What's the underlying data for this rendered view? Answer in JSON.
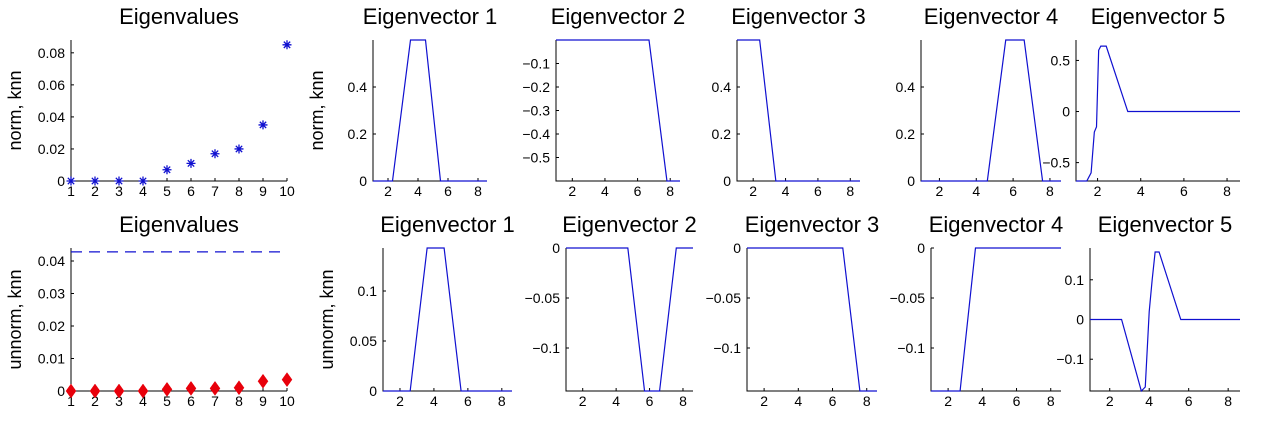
{
  "chart_data": [
    {
      "id": "p1",
      "type": "scatter",
      "title": "Eigenvalues",
      "ylabel": "norm, knn",
      "xlim": [
        1,
        10
      ],
      "ylim": [
        0,
        0.088
      ],
      "xticks": [
        1,
        2,
        3,
        4,
        5,
        6,
        7,
        8,
        9,
        10
      ],
      "xtick_labels": [
        "1",
        "2",
        "3",
        "4",
        "5",
        "6",
        "7",
        "8",
        "9",
        "10"
      ],
      "yticks": [
        0,
        0.02,
        0.04,
        0.06,
        0.08
      ],
      "ytick_labels": [
        "0",
        "0.02",
        "0.04",
        "0.06",
        "0.08"
      ],
      "marker": "asterisk",
      "color": "#1010d0",
      "points": [
        [
          1,
          0
        ],
        [
          2,
          0
        ],
        [
          3,
          0
        ],
        [
          4,
          0
        ],
        [
          5,
          0.007
        ],
        [
          6,
          0.011
        ],
        [
          7,
          0.017
        ],
        [
          8,
          0.02
        ],
        [
          9,
          0.035
        ],
        [
          10,
          0.085
        ]
      ]
    },
    {
      "id": "p2",
      "type": "line",
      "title": "Eigenvector 1",
      "ylabel": "norm, knn",
      "xlim": [
        1,
        8.6
      ],
      "ylim": [
        0,
        0.6
      ],
      "xticks": [
        2,
        4,
        6,
        8
      ],
      "xtick_labels": [
        "2",
        "4",
        "6",
        "8"
      ],
      "yticks": [
        0,
        0.2,
        0.4
      ],
      "ytick_labels": [
        "0",
        "0.2",
        "0.4"
      ],
      "points": [
        [
          1,
          0
        ],
        [
          2.3,
          0
        ],
        [
          3.5,
          0.6
        ],
        [
          4.5,
          0.6
        ],
        [
          5.5,
          0
        ],
        [
          8.6,
          0
        ]
      ]
    },
    {
      "id": "p3",
      "type": "line",
      "title": "Eigenvector 2",
      "ylabel": "",
      "xlim": [
        1,
        8.6
      ],
      "ylim": [
        -0.6,
        0
      ],
      "xticks": [
        2,
        4,
        6,
        8
      ],
      "xtick_labels": [
        "2",
        "4",
        "6",
        "8"
      ],
      "yticks": [
        -0.5,
        -0.4,
        -0.3,
        -0.2,
        -0.1
      ],
      "ytick_labels": [
        "−0.5",
        "−0.4",
        "−0.3",
        "−0.2",
        "−0.1"
      ],
      "points": [
        [
          1,
          0
        ],
        [
          6.7,
          0
        ],
        [
          7.8,
          -0.6
        ],
        [
          8.6,
          -0.6
        ]
      ]
    },
    {
      "id": "p4",
      "type": "line",
      "title": "Eigenvector 3",
      "ylabel": "",
      "xlim": [
        1,
        8.6
      ],
      "ylim": [
        0,
        0.6
      ],
      "xticks": [
        2,
        4,
        6,
        8
      ],
      "xtick_labels": [
        "2",
        "4",
        "6",
        "8"
      ],
      "yticks": [
        0,
        0.2,
        0.4
      ],
      "ytick_labels": [
        "0",
        "0.2",
        "0.4"
      ],
      "points": [
        [
          1,
          0.6
        ],
        [
          2.4,
          0.6
        ],
        [
          3.4,
          0
        ],
        [
          8.6,
          0
        ]
      ]
    },
    {
      "id": "p5",
      "type": "line",
      "title": "Eigenvector 4",
      "ylabel": "",
      "xlim": [
        1,
        8.6
      ],
      "ylim": [
        0,
        0.6
      ],
      "xticks": [
        2,
        4,
        6,
        8
      ],
      "xtick_labels": [
        "2",
        "4",
        "6",
        "8"
      ],
      "yticks": [
        0,
        0.2,
        0.4
      ],
      "ytick_labels": [
        "0",
        "0.2",
        "0.4"
      ],
      "points": [
        [
          1,
          0
        ],
        [
          4.6,
          0
        ],
        [
          5.6,
          0.6
        ],
        [
          6.6,
          0.6
        ],
        [
          7.6,
          0
        ],
        [
          8.6,
          0
        ]
      ]
    },
    {
      "id": "p6",
      "type": "line",
      "title": "Eigenvector 5",
      "ylabel": "",
      "xlim": [
        1,
        8.6
      ],
      "ylim": [
        -0.68,
        0.7
      ],
      "xticks": [
        2,
        4,
        6,
        8
      ],
      "xtick_labels": [
        "2",
        "4",
        "6",
        "8"
      ],
      "yticks": [
        -0.5,
        0,
        0.5
      ],
      "ytick_labels": [
        "−0.5",
        "0",
        "0.5"
      ],
      "points": [
        [
          1,
          -0.68
        ],
        [
          1.5,
          -0.68
        ],
        [
          1.7,
          -0.6
        ],
        [
          1.85,
          -0.2
        ],
        [
          1.95,
          -0.15
        ],
        [
          2.05,
          0.6
        ],
        [
          2.15,
          0.64
        ],
        [
          2.4,
          0.64
        ],
        [
          3.4,
          0
        ],
        [
          8.6,
          0
        ]
      ]
    },
    {
      "id": "p7",
      "type": "scatter",
      "title": "Eigenvalues",
      "ylabel": "unnorm, knn",
      "xlim": [
        1,
        10
      ],
      "ylim": [
        0,
        0.044
      ],
      "xticks": [
        1,
        2,
        3,
        4,
        5,
        6,
        7,
        8,
        9,
        10
      ],
      "xtick_labels": [
        "1",
        "2",
        "3",
        "4",
        "5",
        "6",
        "7",
        "8",
        "9",
        "10"
      ],
      "yticks": [
        0,
        0.01,
        0.02,
        0.03,
        0.04
      ],
      "ytick_labels": [
        "0",
        "0.01",
        "0.02",
        "0.03",
        "0.04"
      ],
      "marker": "diamond",
      "color": "#e8000b",
      "reference_line": {
        "y": 0.0428,
        "style": "dashed",
        "color": "#1010d0"
      },
      "points": [
        [
          1,
          0
        ],
        [
          2,
          0
        ],
        [
          3,
          0
        ],
        [
          4,
          0
        ],
        [
          5,
          0.0005
        ],
        [
          6,
          0.0008
        ],
        [
          7,
          0.0008
        ],
        [
          8,
          0.001
        ],
        [
          9,
          0.003
        ],
        [
          10,
          0.0035
        ]
      ]
    },
    {
      "id": "p8",
      "type": "line",
      "title": "Eigenvector 1",
      "ylabel": "unnorm, knn",
      "xlim": [
        1,
        8.6
      ],
      "ylim": [
        0,
        0.143
      ],
      "xticks": [
        2,
        4,
        6,
        8
      ],
      "xtick_labels": [
        "2",
        "4",
        "6",
        "8"
      ],
      "yticks": [
        0,
        0.05,
        0.1
      ],
      "ytick_labels": [
        "0",
        "0.05",
        "0.1"
      ],
      "points": [
        [
          1,
          0
        ],
        [
          2.6,
          0
        ],
        [
          3.6,
          0.143
        ],
        [
          4.6,
          0.143
        ],
        [
          5.6,
          0
        ],
        [
          8.6,
          0
        ]
      ]
    },
    {
      "id": "p9",
      "type": "line",
      "title": "Eigenvector 2",
      "ylabel": "",
      "xlim": [
        1,
        8.6
      ],
      "ylim": [
        -0.143,
        0
      ],
      "xticks": [
        2,
        4,
        6,
        8
      ],
      "xtick_labels": [
        "2",
        "4",
        "6",
        "8"
      ],
      "yticks": [
        -0.1,
        -0.05,
        0
      ],
      "ytick_labels": [
        "−0.1",
        "−0.05",
        "0"
      ],
      "points": [
        [
          1,
          0
        ],
        [
          4.7,
          0
        ],
        [
          5.7,
          -0.143
        ],
        [
          6.6,
          -0.143
        ],
        [
          7.6,
          0
        ],
        [
          8.6,
          0
        ]
      ]
    },
    {
      "id": "p10",
      "type": "line",
      "title": "Eigenvector 3",
      "ylabel": "",
      "xlim": [
        1,
        8.6
      ],
      "ylim": [
        -0.143,
        0
      ],
      "xticks": [
        2,
        4,
        6,
        8
      ],
      "xtick_labels": [
        "2",
        "4",
        "6",
        "8"
      ],
      "yticks": [
        -0.1,
        -0.05,
        0
      ],
      "ytick_labels": [
        "−0.1",
        "−0.05",
        "0"
      ],
      "points": [
        [
          1,
          0
        ],
        [
          6.6,
          0
        ],
        [
          7.6,
          -0.143
        ],
        [
          8.6,
          -0.143
        ]
      ]
    },
    {
      "id": "p11",
      "type": "line",
      "title": "Eigenvector 4",
      "ylabel": "",
      "xlim": [
        1,
        8.6
      ],
      "ylim": [
        -0.143,
        0
      ],
      "xticks": [
        2,
        4,
        6,
        8
      ],
      "xtick_labels": [
        "2",
        "4",
        "6",
        "8"
      ],
      "yticks": [
        -0.1,
        -0.05,
        0
      ],
      "ytick_labels": [
        "−0.1",
        "−0.05",
        "0"
      ],
      "points": [
        [
          1,
          -0.143
        ],
        [
          2.7,
          -0.143
        ],
        [
          3.6,
          0
        ],
        [
          8.6,
          0
        ]
      ]
    },
    {
      "id": "p12",
      "type": "line",
      "title": "Eigenvector 5",
      "ylabel": "",
      "xlim": [
        1,
        8.6
      ],
      "ylim": [
        -0.18,
        0.18
      ],
      "xticks": [
        2,
        4,
        6,
        8
      ],
      "xtick_labels": [
        "2",
        "4",
        "6",
        "8"
      ],
      "yticks": [
        -0.1,
        0,
        0.1
      ],
      "ytick_labels": [
        "−0.1",
        "0",
        "0.1"
      ],
      "points": [
        [
          1,
          0
        ],
        [
          2.6,
          0
        ],
        [
          3.6,
          -0.18
        ],
        [
          3.8,
          -0.17
        ],
        [
          4.0,
          0.02
        ],
        [
          4.15,
          0.1
        ],
        [
          4.3,
          0.17
        ],
        [
          4.5,
          0.17
        ],
        [
          5.6,
          0
        ],
        [
          8.6,
          0
        ]
      ]
    }
  ]
}
